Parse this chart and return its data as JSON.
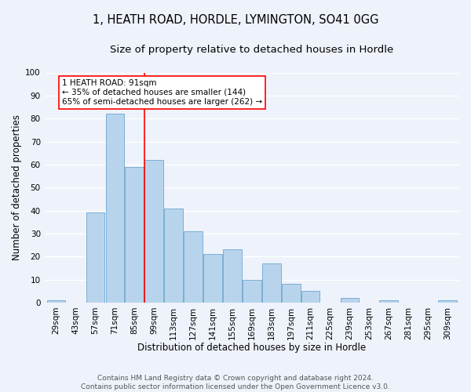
{
  "title": "1, HEATH ROAD, HORDLE, LYMINGTON, SO41 0GG",
  "subtitle": "Size of property relative to detached houses in Hordle",
  "xlabel": "Distribution of detached houses by size in Hordle",
  "ylabel": "Number of detached properties",
  "bar_labels": [
    "29sqm",
    "43sqm",
    "57sqm",
    "71sqm",
    "85sqm",
    "99sqm",
    "113sqm",
    "127sqm",
    "141sqm",
    "155sqm",
    "169sqm",
    "183sqm",
    "197sqm",
    "211sqm",
    "225sqm",
    "239sqm",
    "253sqm",
    "267sqm",
    "281sqm",
    "295sqm",
    "309sqm"
  ],
  "bar_values": [
    1,
    0,
    39,
    82,
    59,
    62,
    41,
    31,
    21,
    23,
    10,
    17,
    8,
    5,
    0,
    2,
    0,
    1,
    0,
    0,
    1
  ],
  "bar_color": "#b8d4ec",
  "bar_edge_color": "#7aaed4",
  "ylim": [
    0,
    100
  ],
  "property_line_x": 4.5,
  "annotation_line1": "1 HEATH ROAD: 91sqm",
  "annotation_line2": "← 35% of detached houses are smaller (144)",
  "annotation_line3": "65% of semi-detached houses are larger (262) →",
  "footer_line1": "Contains HM Land Registry data © Crown copyright and database right 2024.",
  "footer_line2": "Contains public sector information licensed under the Open Government Licence v3.0.",
  "background_color": "#eef2fb",
  "grid_color": "#ffffff",
  "title_fontsize": 10.5,
  "subtitle_fontsize": 9.5,
  "axis_label_fontsize": 8.5,
  "tick_fontsize": 7.5,
  "footer_fontsize": 6.5
}
